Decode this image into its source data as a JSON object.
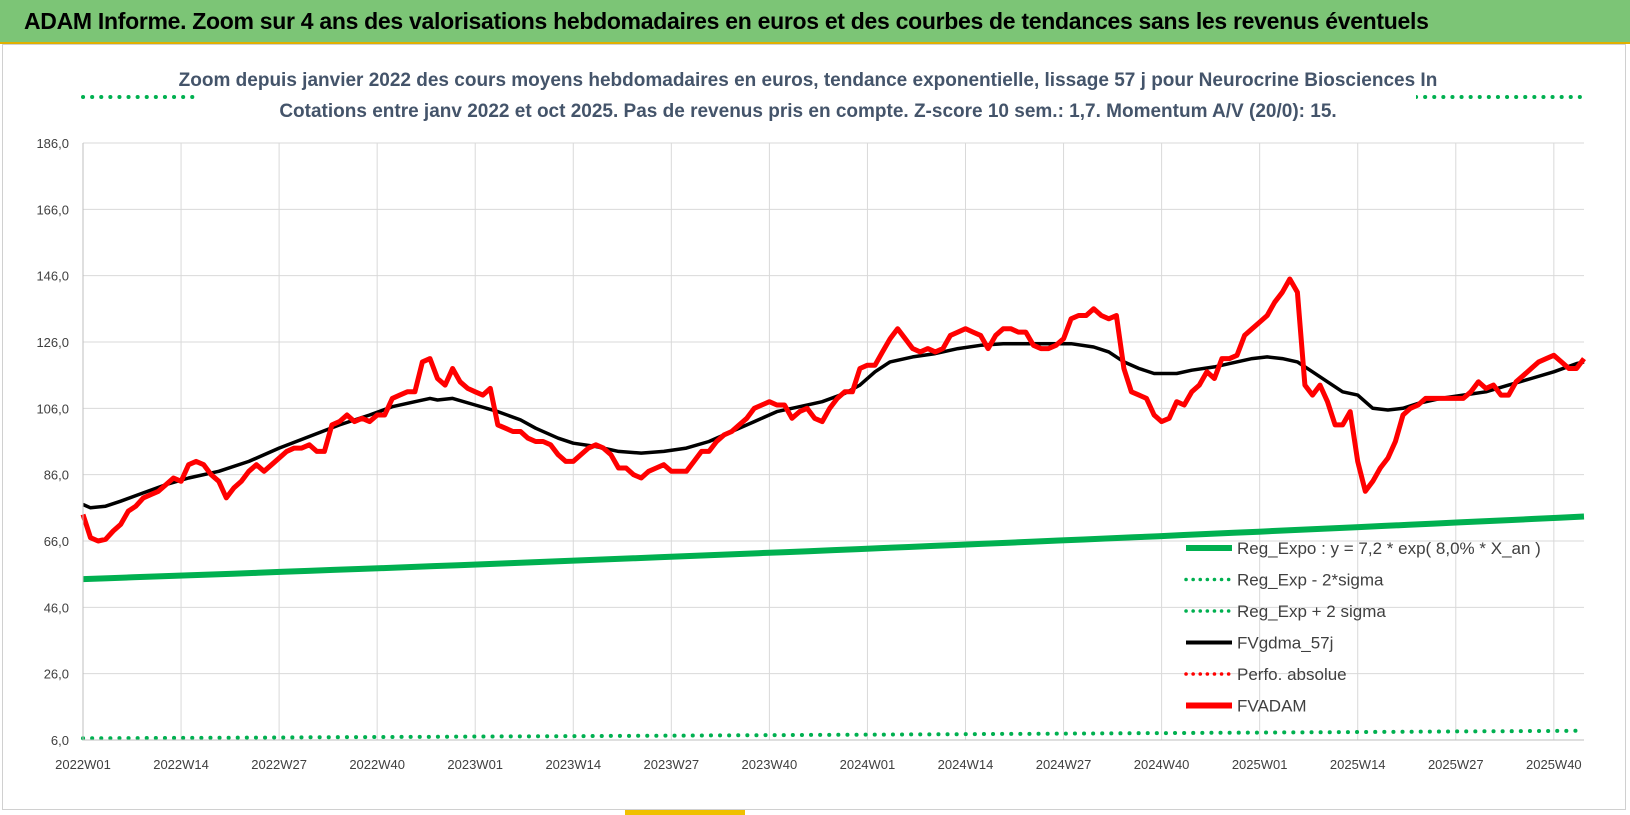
{
  "banner": {
    "title": "ADAM Informe. Zoom sur 4 ans des valorisations hebdomadaires en euros et des courbes de tendances sans les revenus éventuels"
  },
  "colors": {
    "banner_bg": "#7cc576",
    "green": "#00b050",
    "black": "#000000",
    "red": "#ff0000",
    "title_text": "#44546a",
    "grid": "#d9d9d9"
  },
  "chart_data": {
    "type": "line",
    "title_line1": "Zoom depuis janvier 2022 des cours moyens hebdomadaires en euros, tendance exponentielle, lissage 57 j pour Neurocrine Biosciences In",
    "title_line2": "Cotations entre janv 2022 et oct 2025. Pas de revenus pris en compte. Z-score 10 sem.: 1,7. Momentum A/V (20/0): 15.",
    "x_tick_labels": [
      "2022W01",
      "2022W14",
      "2022W27",
      "2022W40",
      "2023W01",
      "2023W14",
      "2023W27",
      "2023W40",
      "2024W01",
      "2024W14",
      "2024W27",
      "2024W40",
      "2025W01",
      "2025W14",
      "2025W27",
      "2025W40"
    ],
    "x_tick_weeks": [
      0,
      13,
      26,
      39,
      52,
      65,
      78,
      91,
      104,
      117,
      130,
      143,
      156,
      169,
      182,
      195
    ],
    "week_count": 200,
    "y_tick_labels": [
      "6,0",
      "26,0",
      "46,0",
      "66,0",
      "86,0",
      "106,0",
      "126,0",
      "146,0",
      "166,0",
      "186,0"
    ],
    "ylim": [
      6,
      186
    ],
    "grid": true,
    "legend_position": "right-bottom",
    "legend": [
      {
        "name": "Reg_Expo : y = 7,2 * exp( 8,0% *  X_an )",
        "style": "solid-thick",
        "color": "#00b050"
      },
      {
        "name": "Reg_Exp - 2*sigma",
        "style": "dotted",
        "color": "#00b050"
      },
      {
        "name": "Reg_Exp + 2 sigma",
        "style": "dotted",
        "color": "#00b050"
      },
      {
        "name": "FVgdma_57j",
        "style": "solid",
        "color": "#000000"
      },
      {
        "name": "Perfo. absolue",
        "style": "dotted",
        "color": "#ff0000"
      },
      {
        "name": "FVADAM",
        "style": "solid-thick",
        "color": "#ff0000"
      }
    ],
    "series": [
      {
        "name": "Reg_Expo",
        "points": [
          [
            0,
            54.5
          ],
          [
            199,
            73.4
          ]
        ]
      },
      {
        "name": "Reg_Exp - 2*sigma",
        "points": [
          [
            0,
            6.5
          ],
          [
            199,
            8.8
          ]
        ]
      },
      {
        "name": "Reg_Exp + 2 sigma",
        "points": [
          [
            0,
            192.5
          ],
          [
            199,
            192.5
          ]
        ]
      },
      {
        "name": "FVgdma_57j",
        "points": [
          [
            0,
            77
          ],
          [
            1,
            76
          ],
          [
            3,
            76.5
          ],
          [
            5,
            78
          ],
          [
            8,
            80.5
          ],
          [
            11,
            83
          ],
          [
            14,
            85
          ],
          [
            18,
            87
          ],
          [
            22,
            90
          ],
          [
            26,
            94
          ],
          [
            30,
            97.5
          ],
          [
            34,
            101
          ],
          [
            38,
            104
          ],
          [
            41,
            106.5
          ],
          [
            44,
            108
          ],
          [
            46,
            109
          ],
          [
            47,
            108.5
          ],
          [
            49,
            109
          ],
          [
            52,
            107
          ],
          [
            55,
            105
          ],
          [
            58,
            102.5
          ],
          [
            60,
            100
          ],
          [
            63,
            97
          ],
          [
            65,
            95.5
          ],
          [
            68,
            94.5
          ],
          [
            71,
            93
          ],
          [
            74,
            92.5
          ],
          [
            77,
            93
          ],
          [
            80,
            94
          ],
          [
            83,
            96
          ],
          [
            86,
            99
          ],
          [
            89,
            102
          ],
          [
            92,
            105
          ],
          [
            95,
            106.5
          ],
          [
            98,
            108
          ],
          [
            101,
            110.5
          ],
          [
            103,
            113
          ],
          [
            105,
            117
          ],
          [
            107,
            120
          ],
          [
            110,
            121.5
          ],
          [
            113,
            122.5
          ],
          [
            116,
            124
          ],
          [
            119,
            125
          ],
          [
            122,
            125.5
          ],
          [
            125,
            125.5
          ],
          [
            128,
            125.5
          ],
          [
            131,
            125.5
          ],
          [
            134,
            124.5
          ],
          [
            136,
            123
          ],
          [
            138,
            120
          ],
          [
            140,
            118
          ],
          [
            142,
            116.5
          ],
          [
            145,
            116.5
          ],
          [
            147,
            117.5
          ],
          [
            150,
            118.5
          ],
          [
            152,
            119.5
          ],
          [
            155,
            121
          ],
          [
            157,
            121.5
          ],
          [
            159,
            121
          ],
          [
            161,
            120
          ],
          [
            163,
            117
          ],
          [
            165,
            114
          ],
          [
            167,
            111
          ],
          [
            169,
            110
          ],
          [
            171,
            106
          ],
          [
            173,
            105.5
          ],
          [
            175,
            106
          ],
          [
            177,
            107.5
          ],
          [
            180,
            109
          ],
          [
            183,
            110
          ],
          [
            186,
            111
          ],
          [
            189,
            113
          ],
          [
            192,
            115
          ],
          [
            195,
            117
          ],
          [
            198,
            119.5
          ],
          [
            199,
            120
          ]
        ]
      },
      {
        "name": "FVADAM",
        "points": [
          [
            0,
            74
          ],
          [
            1,
            67
          ],
          [
            2,
            66
          ],
          [
            3,
            66.5
          ],
          [
            4,
            69
          ],
          [
            5,
            71
          ],
          [
            6,
            75
          ],
          [
            7,
            76.5
          ],
          [
            8,
            79
          ],
          [
            9,
            80
          ],
          [
            10,
            81
          ],
          [
            11,
            83
          ],
          [
            12,
            85
          ],
          [
            13,
            84
          ],
          [
            14,
            89
          ],
          [
            15,
            90
          ],
          [
            16,
            89
          ],
          [
            17,
            86
          ],
          [
            18,
            84
          ],
          [
            19,
            79
          ],
          [
            20,
            82
          ],
          [
            21,
            84
          ],
          [
            22,
            87
          ],
          [
            23,
            89
          ],
          [
            24,
            87
          ],
          [
            25,
            89
          ],
          [
            26,
            91
          ],
          [
            27,
            93
          ],
          [
            28,
            94
          ],
          [
            29,
            94
          ],
          [
            30,
            95
          ],
          [
            31,
            93
          ],
          [
            32,
            93
          ],
          [
            33,
            101
          ],
          [
            34,
            102
          ],
          [
            35,
            104
          ],
          [
            36,
            102
          ],
          [
            37,
            103
          ],
          [
            38,
            102
          ],
          [
            39,
            104
          ],
          [
            40,
            104
          ],
          [
            41,
            109
          ],
          [
            42,
            110
          ],
          [
            43,
            111
          ],
          [
            44,
            111
          ],
          [
            45,
            120
          ],
          [
            46,
            121
          ],
          [
            47,
            115
          ],
          [
            48,
            113
          ],
          [
            49,
            118
          ],
          [
            50,
            114
          ],
          [
            51,
            112
          ],
          [
            52,
            111
          ],
          [
            53,
            110
          ],
          [
            54,
            112
          ],
          [
            55,
            101
          ],
          [
            56,
            100
          ],
          [
            57,
            99
          ],
          [
            58,
            99
          ],
          [
            59,
            97
          ],
          [
            60,
            96
          ],
          [
            61,
            96
          ],
          [
            62,
            95
          ],
          [
            63,
            92
          ],
          [
            64,
            90
          ],
          [
            65,
            90
          ],
          [
            66,
            92
          ],
          [
            67,
            94
          ],
          [
            68,
            95
          ],
          [
            69,
            94
          ],
          [
            70,
            92
          ],
          [
            71,
            88
          ],
          [
            72,
            88
          ],
          [
            73,
            86
          ],
          [
            74,
            85
          ],
          [
            75,
            87
          ],
          [
            76,
            88
          ],
          [
            77,
            89
          ],
          [
            78,
            87
          ],
          [
            79,
            87
          ],
          [
            80,
            87
          ],
          [
            81,
            90
          ],
          [
            82,
            93
          ],
          [
            83,
            93
          ],
          [
            84,
            96
          ],
          [
            85,
            98
          ],
          [
            86,
            99
          ],
          [
            87,
            101
          ],
          [
            88,
            103
          ],
          [
            89,
            106
          ],
          [
            90,
            107
          ],
          [
            91,
            108
          ],
          [
            92,
            107
          ],
          [
            93,
            107
          ],
          [
            94,
            103
          ],
          [
            95,
            105
          ],
          [
            96,
            106
          ],
          [
            97,
            103
          ],
          [
            98,
            102
          ],
          [
            99,
            106
          ],
          [
            100,
            109
          ],
          [
            101,
            111
          ],
          [
            102,
            111
          ],
          [
            103,
            118
          ],
          [
            104,
            119
          ],
          [
            105,
            119
          ],
          [
            106,
            123
          ],
          [
            107,
            127
          ],
          [
            108,
            130
          ],
          [
            109,
            127
          ],
          [
            110,
            124
          ],
          [
            111,
            123
          ],
          [
            112,
            124
          ],
          [
            113,
            123
          ],
          [
            114,
            124
          ],
          [
            115,
            128
          ],
          [
            116,
            129
          ],
          [
            117,
            130
          ],
          [
            118,
            129
          ],
          [
            119,
            128
          ],
          [
            120,
            124
          ],
          [
            121,
            128
          ],
          [
            122,
            130
          ],
          [
            123,
            130
          ],
          [
            124,
            129
          ],
          [
            125,
            129
          ],
          [
            126,
            125
          ],
          [
            127,
            124
          ],
          [
            128,
            124
          ],
          [
            129,
            125
          ],
          [
            130,
            127
          ],
          [
            131,
            133
          ],
          [
            132,
            134
          ],
          [
            133,
            134
          ],
          [
            134,
            136
          ],
          [
            135,
            134
          ],
          [
            136,
            133
          ],
          [
            137,
            134
          ],
          [
            138,
            118
          ],
          [
            139,
            111
          ],
          [
            140,
            110
          ],
          [
            141,
            109
          ],
          [
            142,
            104
          ],
          [
            143,
            102
          ],
          [
            144,
            103
          ],
          [
            145,
            108
          ],
          [
            146,
            107
          ],
          [
            147,
            111
          ],
          [
            148,
            113
          ],
          [
            149,
            117
          ],
          [
            150,
            115
          ],
          [
            151,
            121
          ],
          [
            152,
            121
          ],
          [
            153,
            122
          ],
          [
            154,
            128
          ],
          [
            155,
            130
          ],
          [
            156,
            132
          ],
          [
            157,
            134
          ],
          [
            158,
            138
          ],
          [
            159,
            141
          ],
          [
            160,
            145
          ],
          [
            161,
            141
          ],
          [
            162,
            113
          ],
          [
            163,
            110
          ],
          [
            164,
            113
          ],
          [
            165,
            108
          ],
          [
            166,
            101
          ],
          [
            167,
            101
          ],
          [
            168,
            105
          ],
          [
            169,
            90
          ],
          [
            170,
            81
          ],
          [
            171,
            84
          ],
          [
            172,
            88
          ],
          [
            173,
            91
          ],
          [
            174,
            96
          ],
          [
            175,
            104
          ],
          [
            176,
            106
          ],
          [
            177,
            107
          ],
          [
            178,
            109
          ],
          [
            179,
            109
          ],
          [
            180,
            109
          ],
          [
            181,
            109
          ],
          [
            182,
            109
          ],
          [
            183,
            109
          ],
          [
            184,
            111
          ],
          [
            185,
            114
          ],
          [
            186,
            112
          ],
          [
            187,
            113
          ],
          [
            188,
            110
          ],
          [
            189,
            110
          ],
          [
            190,
            114
          ],
          [
            191,
            116
          ],
          [
            192,
            118
          ],
          [
            193,
            120
          ],
          [
            194,
            121
          ],
          [
            195,
            122
          ],
          [
            196,
            120
          ],
          [
            197,
            118
          ],
          [
            198,
            118
          ],
          [
            199,
            121
          ]
        ]
      }
    ]
  }
}
